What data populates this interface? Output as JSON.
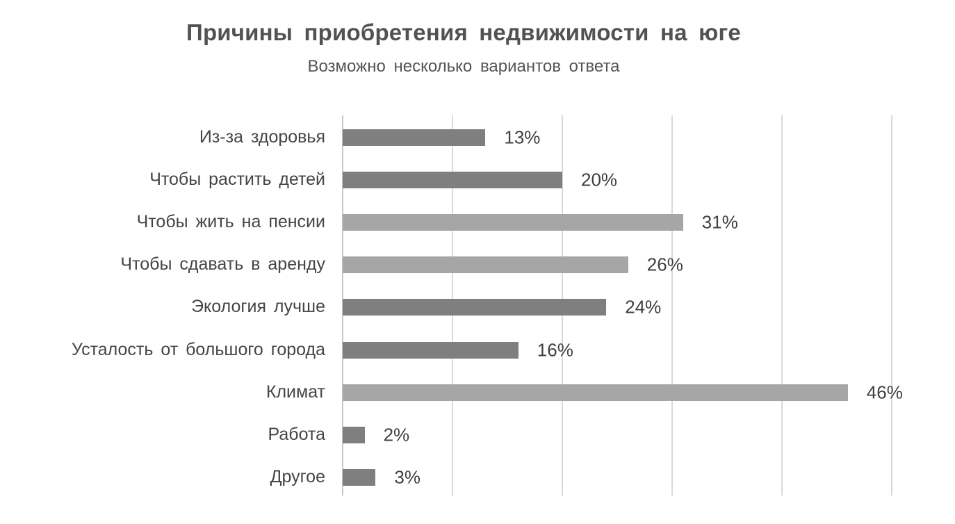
{
  "title": "Причины приобретения недвижимости на юге",
  "subtitle": "Возможно несколько вариантов ответа",
  "colors": {
    "bar_dark": "#7f7f7f",
    "bar_light": "#a6a6a6",
    "gridline": "#d9d9d9",
    "axis_line": "#c7c7c7",
    "label_text": "#454545",
    "title_text": "#525252"
  },
  "chart_data": {
    "type": "bar",
    "orientation": "horizontal",
    "title": "Причины приобретения недвижимости на юге",
    "subtitle": "Возможно несколько вариантов ответа",
    "categories": [
      "Из-за здоровья",
      "Чтобы растить детей",
      "Чтобы жить на пенсии",
      "Чтобы сдавать в аренду",
      "Экология лучше",
      "Усталость от большого города",
      "Климат",
      "Работа",
      "Другое"
    ],
    "values": [
      13,
      20,
      31,
      26,
      24,
      16,
      46,
      2,
      3
    ],
    "value_labels": [
      "13%",
      "20%",
      "31%",
      "26%",
      "24%",
      "16%",
      "46%",
      "2%",
      "3%"
    ],
    "bar_color_keys": [
      "bar_dark",
      "bar_dark",
      "bar_light",
      "bar_light",
      "bar_dark",
      "bar_dark",
      "bar_light",
      "bar_dark",
      "bar_dark"
    ],
    "xlim": [
      0,
      50
    ],
    "grid_step_percent": 10,
    "gridlines": "vertical",
    "legend": "none",
    "value_labels_position": "outside-end"
  }
}
